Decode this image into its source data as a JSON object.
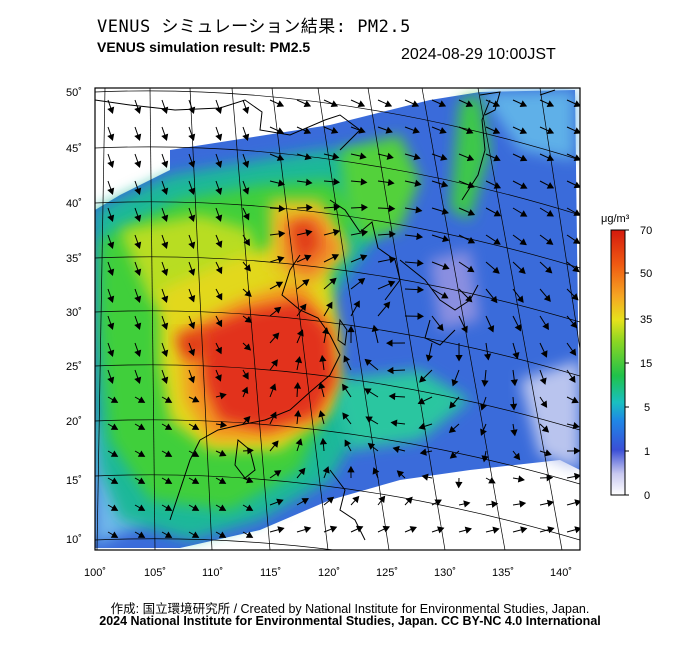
{
  "header": {
    "title_jp": "VENUS シミュレーション結果: PM2.5",
    "title_en": "VENUS simulation result: PM2.5",
    "timestamp": "2024-08-29 10:00JST"
  },
  "map": {
    "lon_labels": [
      "100˚",
      "105˚",
      "110˚",
      "115˚",
      "120˚",
      "125˚",
      "130˚",
      "135˚",
      "140˚"
    ],
    "lat_labels": [
      "50˚",
      "45˚",
      "40˚",
      "35˚",
      "30˚",
      "25˚",
      "20˚",
      "15˚",
      "10˚"
    ],
    "lon_range": [
      100,
      142
    ],
    "lat_range": [
      9,
      51
    ]
  },
  "colorbar": {
    "unit": "μg/m³",
    "tick_labels": [
      "70",
      "50",
      "35",
      "15",
      "5",
      "1",
      "0"
    ],
    "colors": [
      "#d2200f",
      "#f05a10",
      "#f5a623",
      "#e6e21c",
      "#7ed321",
      "#1fc24a",
      "#19bdb0",
      "#1f7fe0",
      "#2a50d8",
      "#7d86e0",
      "#e8e8f5"
    ]
  },
  "footer": {
    "credit_jp": "作成: 国立環境研究所 / Created by National Institute for Environmental Studies, Japan.",
    "copyright": "2024 National Institute for Environmental Studies, Japan. CC BY-NC 4.0 International"
  }
}
